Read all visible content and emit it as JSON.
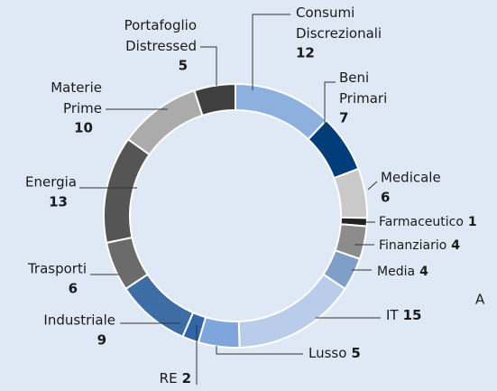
{
  "chart_data": {
    "type": "donut",
    "categories": [
      "Consumi Discrezionali",
      "Beni Primari",
      "Medicale",
      "Farmaceutico",
      "Finanziario",
      "Media",
      "IT",
      "Lusso",
      "RE",
      "Industriale",
      "Trasporti",
      "Energia",
      "Materie Prime",
      "Portafoglio Distressed"
    ],
    "values": [
      12,
      7,
      6,
      1,
      4,
      4,
      15,
      5,
      2,
      9,
      6,
      13,
      10,
      5
    ],
    "colors": [
      "#8eb0de",
      "#003d7a",
      "#c9c9c9",
      "#222222",
      "#8c8c8c",
      "#7f9fc9",
      "#b9cdea",
      "#7fa6dc",
      "#2e66a8",
      "#3e6da5",
      "#6b6b6b",
      "#555555",
      "#ababab",
      "#3f3f3f"
    ],
    "annotation": "A"
  }
}
